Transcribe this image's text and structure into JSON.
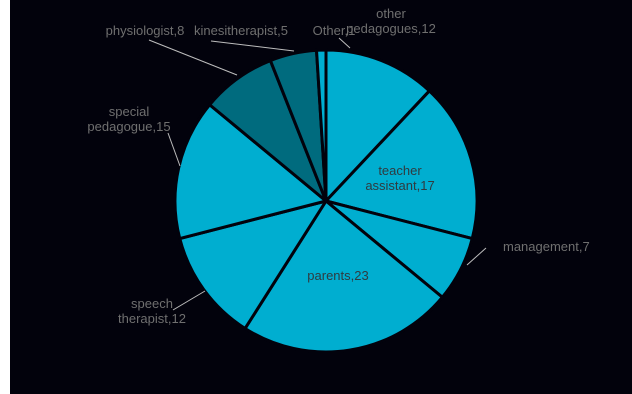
{
  "colors": {
    "background": "#02020c",
    "slice_border": "#02020c",
    "label_outside": "#6f6f6f",
    "label_inside": "#2f3b40",
    "leader_line": "#bdbdbd"
  },
  "chart_data": {
    "type": "pie",
    "title": "",
    "legend": "none",
    "slices": [
      {
        "label": "other pedagogues",
        "value": 12,
        "color": "#00aed0"
      },
      {
        "label": "teacher assistant",
        "value": 17,
        "color": "#00aed0"
      },
      {
        "label": "management",
        "value": 7,
        "color": "#00aed0"
      },
      {
        "label": "parents",
        "value": 23,
        "color": "#00aed0"
      },
      {
        "label": "speech therapist",
        "value": 12,
        "color": "#00aed0"
      },
      {
        "label": "special pedagogue",
        "value": 15,
        "color": "#00aed0"
      },
      {
        "label": "physiologist",
        "value": 8,
        "color": "#006b7e"
      },
      {
        "label": "kinesitherapist",
        "value": 5,
        "color": "#006b7e"
      },
      {
        "label": "Other",
        "value": 1,
        "color": "#00aed0"
      }
    ],
    "data_labels": [
      {
        "slice": 0,
        "lines": [
          "other",
          "pedagogues,12"
        ]
      },
      {
        "slice": 1,
        "lines": [
          "teacher",
          "assistant,17"
        ]
      },
      {
        "slice": 2,
        "lines": [
          "management,7"
        ]
      },
      {
        "slice": 3,
        "lines": [
          "parents,23"
        ]
      },
      {
        "slice": 4,
        "lines": [
          "speech",
          "therapist,12"
        ]
      },
      {
        "slice": 5,
        "lines": [
          "special",
          "pedagogue,15"
        ]
      },
      {
        "slice": 6,
        "lines": [
          "physiologist,8"
        ]
      },
      {
        "slice": 7,
        "lines": [
          "kinesitherapist,5"
        ]
      },
      {
        "slice": 8,
        "lines": [
          "Other,1"
        ]
      }
    ]
  }
}
